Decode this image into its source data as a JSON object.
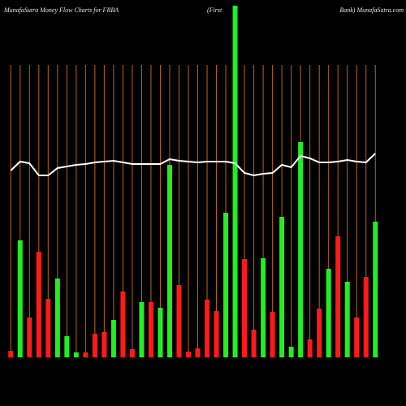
{
  "chart_data": {
    "type": "bar",
    "title_parts": [
      "MunafaSutra  Money Flow  Charts for FRBA",
      "(First",
      "Bank) MunafaSutra.com"
    ],
    "categories": [
      null,
      null,
      null,
      null,
      null,
      null,
      null,
      null,
      null,
      null,
      null,
      null,
      null,
      null,
      null,
      null,
      null,
      null,
      null,
      null,
      null,
      null,
      null,
      null,
      null,
      null,
      null,
      null,
      null,
      null,
      null,
      null,
      null,
      null,
      null,
      null,
      null,
      null,
      null,
      null
    ],
    "values": [
      8,
      144,
      49,
      130,
      72,
      97,
      26,
      6,
      6,
      29,
      31,
      46,
      81,
      10,
      68,
      68,
      61,
      237,
      89,
      7,
      11,
      71,
      57,
      178,
      433,
      121,
      34,
      122,
      56,
      173,
      13,
      265,
      22,
      60,
      109,
      149,
      93,
      49,
      99,
      167
    ],
    "colors": [
      "#ff1a1a",
      "#22ee22",
      "#ff1a1a",
      "#ff1a1a",
      "#ff1a1a",
      "#22ee22",
      "#22ee22",
      "#22ee22",
      "#ff1a1a",
      "#ff1a1a",
      "#ff1a1a",
      "#22ee22",
      "#ff1a1a",
      "#ff1a1a",
      "#22ee22",
      "#ff1a1a",
      "#22ee22",
      "#22ee22",
      "#ff1a1a",
      "#ff1a1a",
      "#ff1a1a",
      "#ff1a1a",
      "#ff1a1a",
      "#22ee22",
      "#22ee22",
      "#ff1a1a",
      "#ff1a1a",
      "#22ee22",
      "#ff1a1a",
      "#22ee22",
      "#22ee22",
      "#22ee22",
      "#ff1a1a",
      "#ff1a1a",
      "#22ee22",
      "#ff1a1a",
      "#22ee22",
      "#ff1a1a",
      "#ff1a1a",
      "#22ee22"
    ],
    "line": {
      "color": "#ffffff",
      "values": [
        230,
        241,
        239,
        224,
        224,
        233,
        235,
        237,
        238,
        240,
        241,
        242,
        240,
        238,
        238,
        238,
        238,
        244,
        242,
        241,
        240,
        241,
        241,
        241,
        239,
        227,
        224,
        226,
        227,
        237,
        234,
        248,
        245,
        240,
        240,
        241,
        243,
        241,
        240,
        251
      ]
    },
    "ylim": [
      0,
      440
    ],
    "grid": true,
    "grid_color": "#b8651c"
  }
}
